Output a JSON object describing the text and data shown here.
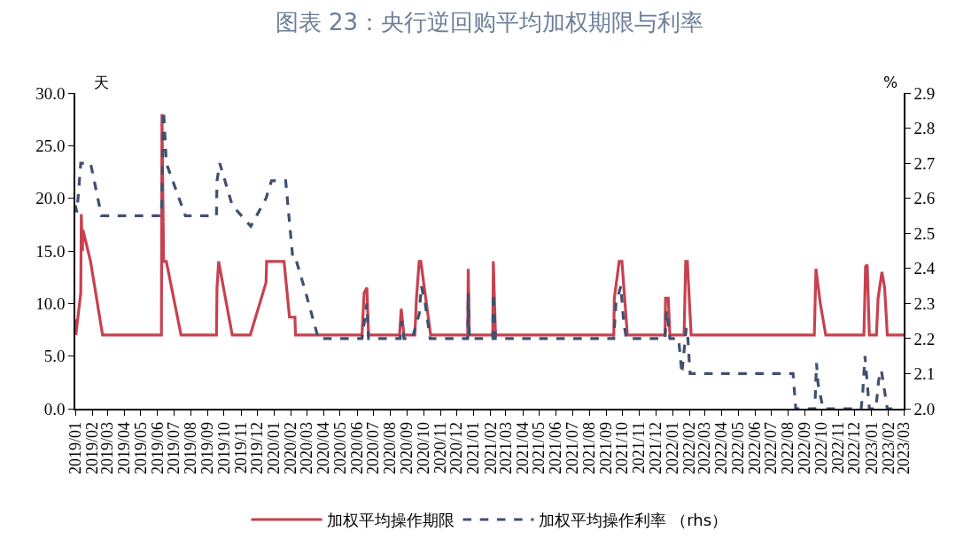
{
  "chart_data": {
    "type": "line",
    "title": "图表 23：央行逆回购平均加权期限与利率",
    "ylabel": "天",
    "y2label": "%",
    "xlim": [
      "2019-01-01",
      "2023-03-01"
    ],
    "xticks": [
      {
        "value": "2019-01-01",
        "label": "2019/01"
      },
      {
        "value": "2019-02-01",
        "label": "2019/02"
      },
      {
        "value": "2019-03-01",
        "label": "2019/03"
      },
      {
        "value": "2019-04-01",
        "label": "2019/04"
      },
      {
        "value": "2019-05-01",
        "label": "2019/05"
      },
      {
        "value": "2019-06-01",
        "label": "2019/06"
      },
      {
        "value": "2019-07-01",
        "label": "2019/07"
      },
      {
        "value": "2019-08-01",
        "label": "2019/08"
      },
      {
        "value": "2019-09-01",
        "label": "2019/09"
      },
      {
        "value": "2019-10-01",
        "label": "2019/10"
      },
      {
        "value": "2019-11-01",
        "label": "2019/11"
      },
      {
        "value": "2019-12-01",
        "label": "2019/12"
      },
      {
        "value": "2020-01-01",
        "label": "2020/01"
      },
      {
        "value": "2020-02-01",
        "label": "2020/02"
      },
      {
        "value": "2020-03-01",
        "label": "2020/03"
      },
      {
        "value": "2020-04-01",
        "label": "2020/04"
      },
      {
        "value": "2020-05-01",
        "label": "2020/05"
      },
      {
        "value": "2020-06-01",
        "label": "2020/06"
      },
      {
        "value": "2020-07-01",
        "label": "2020/07"
      },
      {
        "value": "2020-08-01",
        "label": "2020/08"
      },
      {
        "value": "2020-09-01",
        "label": "2020/09"
      },
      {
        "value": "2020-10-01",
        "label": "2020/10"
      },
      {
        "value": "2020-11-01",
        "label": "2020/11"
      },
      {
        "value": "2020-12-01",
        "label": "2020/12"
      },
      {
        "value": "2021-01-01",
        "label": "2021/01"
      },
      {
        "value": "2021-02-01",
        "label": "2021/02"
      },
      {
        "value": "2021-03-01",
        "label": "2021/03"
      },
      {
        "value": "2021-04-01",
        "label": "2021/04"
      },
      {
        "value": "2021-05-01",
        "label": "2021/05"
      },
      {
        "value": "2021-06-01",
        "label": "2021/06"
      },
      {
        "value": "2021-07-01",
        "label": "2021/07"
      },
      {
        "value": "2021-08-01",
        "label": "2021/08"
      },
      {
        "value": "2021-09-01",
        "label": "2021/09"
      },
      {
        "value": "2021-10-01",
        "label": "2021/10"
      },
      {
        "value": "2021-11-01",
        "label": "2021/11"
      },
      {
        "value": "2021-12-01",
        "label": "2021/12"
      },
      {
        "value": "2022-01-01",
        "label": "2022/01"
      },
      {
        "value": "2022-02-01",
        "label": "2022/02"
      },
      {
        "value": "2022-03-01",
        "label": "2022/03"
      },
      {
        "value": "2022-04-01",
        "label": "2022/04"
      },
      {
        "value": "2022-05-01",
        "label": "2022/05"
      },
      {
        "value": "2022-06-01",
        "label": "2022/06"
      },
      {
        "value": "2022-07-01",
        "label": "2022/07"
      },
      {
        "value": "2022-08-01",
        "label": "2022/08"
      },
      {
        "value": "2022-09-01",
        "label": "2022/09"
      },
      {
        "value": "2022-10-01",
        "label": "2022/10"
      },
      {
        "value": "2022-11-01",
        "label": "2022/11"
      },
      {
        "value": "2022-12-01",
        "label": "2022/12"
      },
      {
        "value": "2023-01-01",
        "label": "2023/01"
      },
      {
        "value": "2023-02-01",
        "label": "2023/02"
      },
      {
        "value": "2023-03-01",
        "label": "2023/03"
      }
    ],
    "ylim": [
      0,
      30
    ],
    "yticks": [
      {
        "value": 0,
        "label": "0.0"
      },
      {
        "value": 5,
        "label": "5.0"
      },
      {
        "value": 10,
        "label": "10.0"
      },
      {
        "value": 15,
        "label": "15.0"
      },
      {
        "value": 20,
        "label": "20.0"
      },
      {
        "value": 25,
        "label": "25.0"
      },
      {
        "value": 30,
        "label": "30.0"
      }
    ],
    "y2lim": [
      2.0,
      2.9
    ],
    "y2ticks": [
      {
        "value": 2.0,
        "label": "2.0"
      },
      2.1,
      2.2,
      2.3,
      2.4,
      2.5,
      2.6,
      2.7,
      2.8,
      2.9
    ],
    "legend": "bottom",
    "marker": "none",
    "series": [
      {
        "name": "加权平均操作期限",
        "color": "#c8414f",
        "line_style": "solid",
        "x": [
          "2019-01-01",
          "2019-01-02",
          "2019-01-11",
          "2019-01-12",
          "2019-01-14",
          "2019-01-15",
          "2019-01-29",
          "2019-02-20",
          "2019-06-08",
          "2019-06-09",
          "2019-06-12",
          "2019-06-17",
          "2019-07-14",
          "2019-09-17",
          "2019-09-18",
          "2019-09-21",
          "2019-10-16",
          "2019-11-18",
          "2019-12-17",
          "2019-12-18",
          "2020-01-19",
          "2020-01-29",
          "2020-02-08",
          "2020-02-09",
          "2020-06-10",
          "2020-06-14",
          "2020-06-19",
          "2020-06-22",
          "2020-08-18",
          "2020-08-21",
          "2020-08-26",
          "2020-09-15",
          "2020-09-18",
          "2020-09-23",
          "2020-09-26",
          "2020-10-14",
          "2020-12-21",
          "2020-12-22",
          "2020-12-24",
          "2021-02-05",
          "2021-02-06",
          "2021-02-10",
          "2021-09-15",
          "2021-09-16",
          "2021-09-25",
          "2021-09-30",
          "2021-10-10",
          "2021-12-18",
          "2021-12-19",
          "2021-12-24",
          "2021-12-27",
          "2022-01-22",
          "2022-01-25",
          "2022-01-28",
          "2022-02-04",
          "2022-09-18",
          "2022-09-21",
          "2022-09-29",
          "2022-10-09",
          "2022-12-18",
          "2022-12-21",
          "2022-12-24",
          "2022-12-28",
          "2023-01-10",
          "2023-01-13",
          "2023-01-20",
          "2023-01-25",
          "2023-01-30",
          "2023-03-01"
        ],
        "values": [
          8.5,
          7,
          11,
          18.5,
          15,
          17,
          14,
          7,
          7,
          28,
          14,
          14,
          7,
          7,
          11.5,
          14,
          7,
          7,
          12,
          14,
          14,
          8.7,
          8.7,
          7,
          7,
          11,
          11.5,
          7,
          7,
          9.5,
          7,
          7,
          10.5,
          14,
          14,
          7,
          7,
          13.3,
          7,
          7,
          14,
          7,
          7,
          10.5,
          14,
          14,
          7,
          7,
          10.5,
          10.5,
          7,
          7,
          14,
          14,
          7,
          7,
          13.3,
          10,
          7,
          7,
          13.5,
          13.7,
          7,
          7,
          10.5,
          13,
          11.5,
          7,
          7
        ]
      },
      {
        "name": "加权平均操作利率 （rhs）",
        "color": "#3f5070",
        "axis": "y2",
        "line_style": "dashed",
        "x": [
          "2019-01-01",
          "2019-01-04",
          "2019-01-11",
          "2019-01-29",
          "2019-02-18",
          "2019-06-08",
          "2019-06-12",
          "2019-06-17",
          "2019-07-22",
          "2019-09-17",
          "2019-09-18",
          "2019-09-23",
          "2019-10-16",
          "2019-11-19",
          "2019-12-17",
          "2019-12-27",
          "2020-01-22",
          "2020-02-04",
          "2020-02-09",
          "2020-02-28",
          "2020-03-22",
          "2020-06-10",
          "2020-06-19",
          "2020-06-22",
          "2020-08-19",
          "2020-08-22",
          "2020-08-26",
          "2020-09-10",
          "2020-09-23",
          "2020-09-27",
          "2020-10-04",
          "2020-10-13",
          "2020-12-21",
          "2020-12-22",
          "2020-12-24",
          "2021-02-05",
          "2021-02-06",
          "2021-02-10",
          "2021-09-15",
          "2021-09-19",
          "2021-09-28",
          "2021-10-03",
          "2021-10-08",
          "2021-12-18",
          "2021-12-21",
          "2021-12-27",
          "2022-01-12",
          "2022-01-15",
          "2022-01-18",
          "2022-01-26",
          "2022-01-29",
          "2022-02-02",
          "2022-08-10",
          "2022-08-15",
          "2022-09-19",
          "2022-09-22",
          "2022-09-25",
          "2022-10-04",
          "2022-12-13",
          "2022-12-16",
          "2022-12-20",
          "2022-12-28",
          "2023-01-09",
          "2023-01-14",
          "2023-01-19",
          "2023-01-25",
          "2023-01-30",
          "2023-02-10"
        ],
        "values": [
          2.58,
          2.56,
          2.7,
          2.7,
          2.55,
          2.55,
          2.85,
          2.7,
          2.55,
          2.55,
          2.65,
          2.7,
          2.58,
          2.52,
          2.6,
          2.65,
          2.65,
          2.43,
          2.43,
          2.33,
          2.2,
          2.2,
          2.3,
          2.2,
          2.2,
          2.25,
          2.2,
          2.2,
          2.27,
          2.35,
          2.3,
          2.2,
          2.2,
          2.33,
          2.2,
          2.2,
          2.33,
          2.2,
          2.2,
          2.3,
          2.35,
          2.25,
          2.2,
          2.2,
          2.28,
          2.2,
          2.2,
          2.15,
          2.1,
          2.23,
          2.2,
          2.1,
          2.1,
          2.0,
          2.0,
          2.13,
          2.07,
          2.0,
          2.0,
          2.05,
          2.15,
          2.0,
          2.0,
          2.08,
          2.11,
          2.05,
          2.0,
          2.0
        ]
      }
    ]
  }
}
